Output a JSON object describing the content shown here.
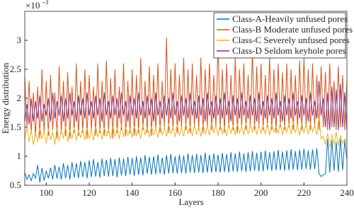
{
  "chart_data": {
    "type": "line",
    "x_label": "Layers",
    "y_label": "Energy distribution",
    "y_scale_base": "×10",
    "y_scale_exponent": "-3",
    "x": [
      90,
      91,
      92,
      93,
      94,
      95,
      96,
      97,
      98,
      99,
      100,
      101,
      102,
      103,
      104,
      105,
      106,
      107,
      108,
      109,
      110,
      111,
      112,
      113,
      114,
      115,
      116,
      117,
      118,
      119,
      120,
      121,
      122,
      123,
      124,
      125,
      126,
      127,
      128,
      129,
      130,
      131,
      132,
      133,
      134,
      135,
      136,
      137,
      138,
      139,
      140,
      141,
      142,
      143,
      144,
      145,
      146,
      147,
      148,
      149,
      150,
      151,
      152,
      153,
      154,
      155,
      156,
      157,
      158,
      159,
      160,
      161,
      162,
      163,
      164,
      165,
      166,
      167,
      168,
      169,
      170,
      171,
      172,
      173,
      174,
      175,
      176,
      177,
      178,
      179,
      180,
      181,
      182,
      183,
      184,
      185,
      186,
      187,
      188,
      189,
      190,
      191,
      192,
      193,
      194,
      195,
      196,
      197,
      198,
      199,
      200,
      201,
      202,
      203,
      204,
      205,
      206,
      207,
      208,
      209,
      210,
      211,
      212,
      213,
      214,
      215,
      216,
      217,
      218,
      219,
      220,
      221,
      222,
      223,
      224,
      225,
      226,
      227,
      228,
      229,
      230,
      231,
      232,
      233,
      234,
      235,
      236,
      237,
      238,
      239,
      240
    ],
    "series": [
      {
        "name": "Class-A-Heavily unfused pores",
        "color": "#0072bd",
        "values": [
          0.72,
          0.6,
          0.68,
          0.58,
          0.7,
          0.62,
          0.85,
          0.55,
          0.8,
          0.58,
          0.75,
          0.62,
          0.8,
          0.6,
          0.85,
          0.62,
          0.82,
          0.6,
          0.88,
          0.62,
          0.85,
          0.6,
          0.9,
          0.63,
          0.88,
          0.62,
          0.92,
          0.64,
          0.9,
          0.62,
          0.93,
          0.64,
          0.95,
          0.65,
          0.9,
          0.63,
          0.96,
          0.66,
          0.94,
          0.65,
          0.97,
          0.66,
          0.95,
          0.64,
          0.98,
          0.67,
          0.96,
          0.66,
          0.99,
          0.68,
          0.97,
          0.66,
          1.0,
          0.68,
          0.98,
          0.67,
          1.02,
          0.7,
          0.99,
          0.68,
          1.0,
          0.69,
          1.03,
          0.7,
          0.98,
          0.68,
          1.02,
          0.7,
          1.04,
          0.71,
          1.0,
          0.7,
          1.03,
          0.71,
          1.01,
          0.7,
          1.05,
          0.72,
          1.02,
          0.71,
          1.04,
          0.72,
          1.02,
          0.71,
          1.06,
          0.72,
          1.03,
          0.72,
          1.05,
          0.73,
          1.03,
          0.72,
          1.06,
          0.73,
          1.04,
          0.72,
          1.07,
          0.74,
          1.05,
          0.73,
          1.08,
          0.74,
          1.05,
          0.73,
          1.07,
          0.74,
          1.09,
          0.75,
          1.06,
          0.74,
          1.08,
          0.74,
          1.1,
          0.76,
          1.07,
          0.75,
          1.09,
          0.76,
          1.11,
          0.76,
          1.08,
          0.75,
          1.1,
          0.76,
          1.12,
          0.77,
          1.09,
          0.76,
          1.11,
          0.77,
          1.13,
          0.78,
          1.1,
          0.77,
          1.12,
          0.78,
          1.14,
          0.7,
          0.65,
          0.68,
          0.7,
          1.3,
          0.72,
          1.28,
          0.75,
          1.25,
          0.73,
          1.3,
          0.76,
          1.27,
          0.95
        ]
      },
      {
        "name": "Class-B Moderate unfused pores",
        "color": "#d95319",
        "values": [
          2.35,
          1.5,
          2.3,
          1.4,
          2.1,
          1.35,
          2.2,
          1.3,
          2.5,
          1.4,
          2.3,
          1.35,
          2.4,
          1.45,
          2.1,
          1.3,
          2.55,
          1.4,
          2.3,
          1.35,
          2.45,
          1.3,
          2.2,
          1.4,
          2.6,
          1.35,
          2.3,
          1.4,
          2.5,
          1.3,
          2.4,
          1.45,
          2.2,
          1.35,
          2.6,
          1.4,
          2.3,
          1.35,
          2.65,
          1.4,
          2.35,
          1.3,
          2.5,
          1.4,
          2.2,
          1.45,
          2.6,
          1.35,
          2.3,
          1.4,
          2.5,
          1.35,
          2.4,
          1.4,
          2.7,
          1.45,
          2.3,
          1.4,
          2.55,
          1.35,
          2.4,
          1.45,
          2.6,
          1.4,
          2.3,
          1.5,
          3.05,
          1.4,
          2.5,
          1.45,
          2.6,
          1.4,
          2.4,
          1.5,
          2.7,
          1.45,
          2.5,
          1.4,
          2.6,
          1.5,
          2.4,
          1.45,
          2.7,
          1.4,
          2.5,
          1.5,
          2.6,
          1.45,
          2.4,
          1.5,
          2.95,
          1.45,
          2.5,
          1.4,
          2.6,
          1.5,
          2.4,
          1.45,
          2.7,
          1.4,
          2.5,
          1.5,
          2.6,
          1.45,
          2.4,
          1.5,
          2.8,
          1.45,
          2.55,
          1.5,
          2.6,
          1.45,
          2.4,
          1.5,
          2.7,
          1.45,
          2.5,
          1.4,
          2.6,
          1.5,
          2.45,
          1.45,
          2.6,
          1.5,
          2.5,
          1.45,
          2.4,
          1.5,
          2.65,
          1.45,
          2.7,
          1.5,
          2.5,
          1.45,
          2.6,
          1.5,
          2.4,
          1.45,
          2.55,
          1.5,
          2.45,
          1.45,
          2.6,
          1.5,
          2.3,
          1.45,
          2.55,
          1.5,
          2.4,
          1.45,
          2.3
        ]
      },
      {
        "name": "Class-C Severely unfused pores",
        "color": "#edb120",
        "values": [
          1.3,
          1.5,
          1.25,
          1.45,
          1.2,
          1.4,
          1.25,
          1.5,
          1.3,
          1.45,
          1.22,
          1.48,
          1.28,
          1.42,
          1.2,
          1.5,
          1.26,
          1.45,
          1.3,
          1.52,
          1.25,
          1.46,
          1.3,
          1.5,
          1.27,
          1.44,
          1.32,
          1.48,
          1.28,
          1.5,
          1.3,
          1.46,
          1.27,
          1.52,
          1.33,
          1.48,
          1.29,
          1.5,
          1.35,
          1.46,
          1.3,
          1.52,
          1.34,
          1.48,
          1.3,
          1.55,
          1.33,
          1.5,
          1.36,
          1.47,
          1.32,
          1.53,
          1.35,
          1.49,
          1.3,
          1.55,
          1.36,
          1.5,
          1.33,
          1.52,
          1.37,
          1.48,
          1.32,
          1.54,
          1.36,
          1.5,
          1.34,
          1.56,
          1.38,
          1.5,
          1.33,
          1.55,
          1.36,
          1.5,
          1.34,
          1.57,
          1.38,
          1.52,
          1.35,
          1.55,
          1.37,
          1.5,
          1.34,
          1.56,
          1.38,
          1.52,
          1.36,
          1.58,
          1.4,
          1.53,
          1.36,
          1.55,
          1.38,
          1.5,
          1.35,
          1.57,
          1.39,
          1.53,
          1.37,
          1.56,
          1.4,
          1.52,
          1.36,
          1.58,
          1.38,
          1.54,
          1.41,
          1.56,
          1.37,
          1.55,
          1.4,
          1.53,
          1.38,
          1.57,
          1.36,
          1.55,
          1.42,
          1.52,
          1.39,
          1.58,
          1.37,
          1.54,
          1.41,
          1.56,
          1.38,
          1.6,
          1.4,
          1.53,
          1.36,
          1.57,
          1.4,
          1.55,
          1.38,
          1.58,
          1.42,
          1.54,
          1.37,
          1.7,
          1.3,
          1.35,
          1.2,
          1.4,
          1.15,
          1.38,
          1.2,
          1.42,
          1.18,
          1.36,
          1.22,
          1.3,
          1.25
        ]
      },
      {
        "name": "Class-D Seldom keyhole pores",
        "color": "#7e2f8e",
        "values": [
          1.6,
          1.9,
          1.55,
          2.0,
          1.6,
          1.95,
          1.65,
          2.05,
          1.6,
          1.9,
          1.7,
          2.0,
          1.6,
          2.1,
          1.65,
          1.95,
          1.7,
          2.05,
          1.6,
          2.0,
          1.65,
          2.1,
          1.7,
          1.95,
          1.6,
          2.05,
          1.7,
          2.0,
          1.65,
          2.1,
          1.7,
          1.95,
          1.65,
          2.05,
          1.7,
          2.0,
          1.6,
          2.1,
          1.7,
          1.95,
          1.65,
          2.05,
          1.7,
          2.0,
          1.65,
          2.1,
          1.7,
          1.95,
          1.6,
          2.05,
          1.7,
          2.0,
          1.65,
          2.1,
          1.7,
          1.95,
          1.65,
          2.05,
          1.7,
          2.0,
          1.6,
          2.1,
          1.7,
          1.95,
          1.65,
          2.05,
          1.7,
          2.0,
          1.65,
          2.1,
          1.7,
          1.95,
          1.6,
          2.05,
          1.7,
          2.0,
          1.65,
          2.1,
          1.7,
          1.95,
          1.65,
          2.05,
          1.7,
          2.0,
          1.6,
          2.1,
          1.7,
          1.95,
          1.65,
          2.05,
          1.7,
          2.0,
          1.65,
          2.1,
          1.7,
          1.95,
          1.6,
          2.05,
          1.7,
          2.0,
          1.65,
          2.1,
          1.7,
          1.95,
          1.65,
          2.05,
          1.7,
          2.0,
          1.6,
          2.1,
          1.7,
          1.95,
          1.65,
          2.05,
          1.7,
          2.0,
          1.65,
          2.1,
          1.7,
          1.95,
          1.6,
          2.05,
          1.7,
          2.0,
          1.65,
          2.1,
          1.7,
          1.95,
          1.65,
          2.05,
          1.7,
          2.0,
          1.6,
          2.1,
          1.7,
          1.95,
          1.65,
          2.3,
          1.7,
          2.0,
          1.5,
          2.1,
          1.45,
          2.2,
          1.5,
          2.15,
          1.45,
          2.25,
          1.5,
          2.1,
          1.45
        ]
      }
    ],
    "xlim": [
      90,
      240
    ],
    "xticks": [
      100,
      120,
      140,
      160,
      180,
      200,
      220,
      240
    ],
    "ylim": [
      0.5,
      3.5
    ],
    "yticks": [
      0.5,
      1,
      1.5,
      2,
      2.5,
      3
    ],
    "legend": "upper right"
  }
}
